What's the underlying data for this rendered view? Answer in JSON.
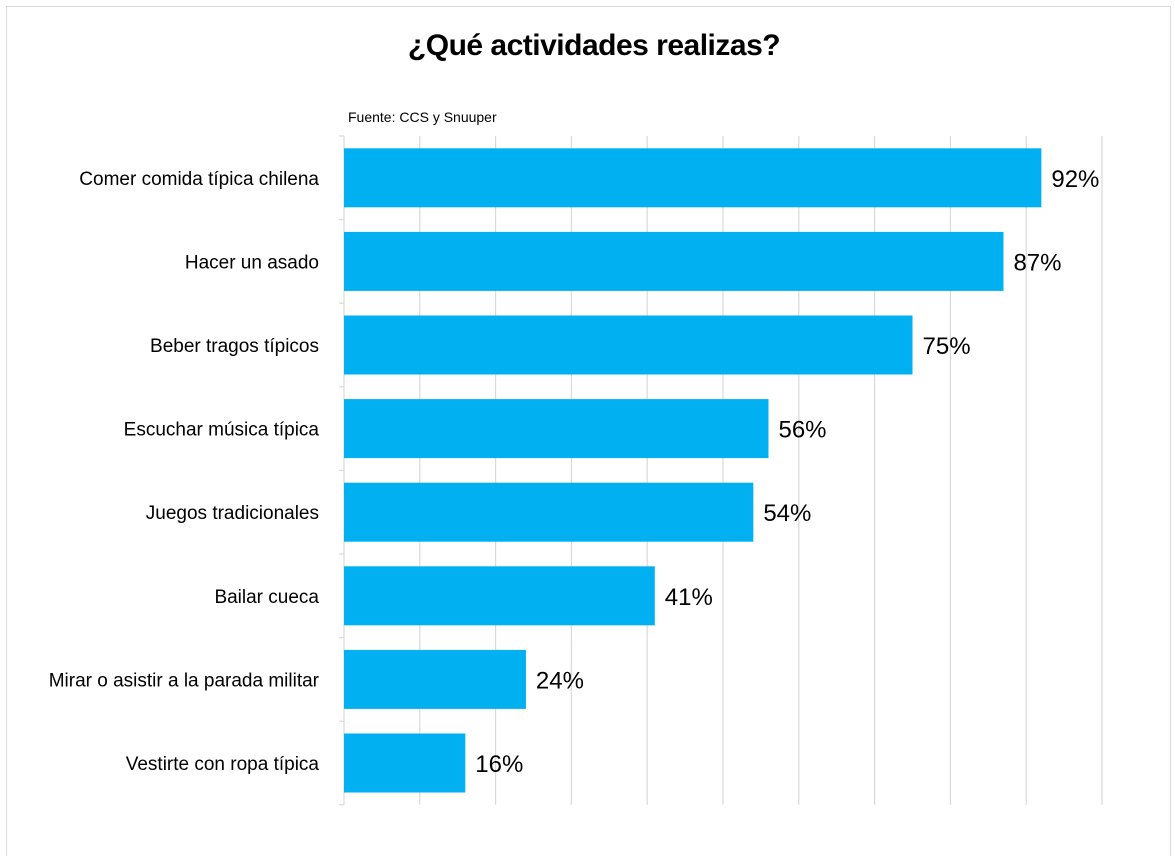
{
  "chart_data": {
    "type": "bar",
    "orientation": "horizontal",
    "title": "¿Qué actividades realizas?",
    "subtitle": "Fuente: CCS y Snuuper",
    "categories": [
      "Comer comida típica chilena",
      "Hacer un asado",
      "Beber tragos típicos",
      "Escuchar música típica",
      "Juegos tradicionales",
      "Bailar cueca",
      "Mirar o asistir a la parada militar",
      "Vestirte con ropa típica"
    ],
    "values": [
      92,
      87,
      75,
      56,
      54,
      41,
      24,
      16
    ],
    "data_labels": [
      "92%",
      "87%",
      "75%",
      "56%",
      "54%",
      "41%",
      "24%",
      "16%"
    ],
    "xlim": [
      0,
      100
    ],
    "grid": true,
    "bar_color": "#00b0f0"
  }
}
